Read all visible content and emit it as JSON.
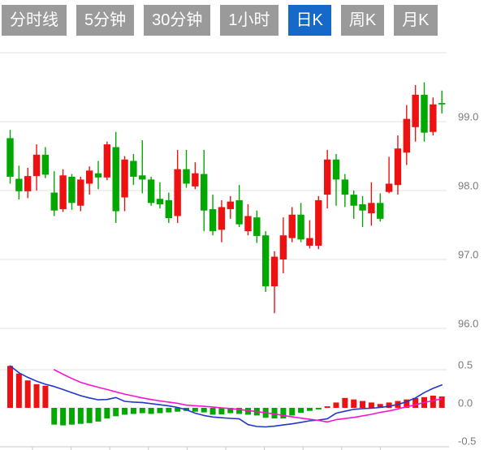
{
  "tabs": {
    "items": [
      {
        "label": "分时线",
        "active": false
      },
      {
        "label": "5分钟",
        "active": false
      },
      {
        "label": "30分钟",
        "active": false
      },
      {
        "label": "1小时",
        "active": false
      },
      {
        "label": "日K",
        "active": true
      },
      {
        "label": "周K",
        "active": false
      },
      {
        "label": "月K",
        "active": false
      }
    ]
  },
  "colors": {
    "tab_bg": "#9a9a9a",
    "tab_active_bg": "#1769c9",
    "tab_text": "#ffffff",
    "up": "#ee1111",
    "down": "#00a800",
    "dif_line": "#2136cc",
    "dea_line": "#fa14cc",
    "grid": "#e0e0e0",
    "axis": "#c9c9c9",
    "label": "#7a7a7a"
  },
  "chart_data": {
    "type": "candlestick",
    "convention": "red = up, green = down (Chinese market style)",
    "legend_position": "none",
    "grid": true,
    "price_axis": {
      "side": "right",
      "tick_labels": [
        "99.0",
        "98.0",
        "97.0",
        "96.0"
      ],
      "tick_values": [
        99.0,
        98.0,
        97.0,
        96.0
      ],
      "grid_values": [
        100.0,
        99.0,
        98.0,
        97.0,
        96.0
      ],
      "range": [
        95.8,
        100.0
      ]
    },
    "candles_ohlc": [
      [
        98.76,
        98.88,
        98.1,
        98.2
      ],
      [
        98.17,
        98.36,
        97.87,
        97.99
      ],
      [
        97.99,
        98.33,
        97.89,
        98.21
      ],
      [
        98.21,
        98.67,
        98.0,
        98.52
      ],
      [
        98.52,
        98.63,
        98.18,
        98.23
      ],
      [
        97.97,
        98.28,
        97.63,
        97.71
      ],
      [
        97.73,
        98.31,
        97.69,
        98.22
      ],
      [
        98.2,
        98.24,
        97.72,
        97.82
      ],
      [
        97.78,
        98.2,
        97.7,
        98.16
      ],
      [
        98.1,
        98.35,
        97.94,
        98.29
      ],
      [
        98.25,
        98.43,
        98.02,
        98.19
      ],
      [
        98.19,
        98.71,
        98.15,
        98.67
      ],
      [
        98.63,
        98.85,
        97.53,
        97.7
      ],
      [
        97.9,
        98.5,
        97.7,
        98.45
      ],
      [
        98.43,
        98.53,
        98.08,
        98.2
      ],
      [
        98.22,
        98.73,
        97.96,
        98.16
      ],
      [
        98.16,
        98.2,
        97.78,
        97.82
      ],
      [
        97.88,
        98.12,
        97.74,
        97.8
      ],
      [
        97.86,
        97.97,
        97.53,
        97.6
      ],
      [
        97.63,
        98.59,
        97.53,
        98.31
      ],
      [
        98.31,
        98.59,
        98.04,
        98.1
      ],
      [
        98.06,
        98.41,
        98.02,
        98.25
      ],
      [
        98.24,
        98.59,
        97.41,
        97.71
      ],
      [
        97.73,
        97.94,
        97.35,
        97.41
      ],
      [
        97.43,
        97.86,
        97.25,
        97.76
      ],
      [
        97.73,
        97.92,
        97.59,
        97.84
      ],
      [
        97.86,
        98.08,
        97.47,
        97.51
      ],
      [
        97.41,
        97.8,
        97.35,
        97.63
      ],
      [
        97.61,
        97.71,
        97.24,
        97.34
      ],
      [
        97.35,
        97.41,
        96.53,
        96.61
      ],
      [
        96.61,
        97.12,
        96.22,
        97.04
      ],
      [
        97.0,
        97.61,
        96.8,
        97.35
      ],
      [
        97.31,
        97.76,
        97.25,
        97.65
      ],
      [
        97.65,
        97.82,
        97.25,
        97.29
      ],
      [
        97.2,
        97.57,
        97.16,
        97.31
      ],
      [
        97.2,
        97.92,
        97.15,
        97.86
      ],
      [
        97.94,
        98.59,
        97.74,
        98.45
      ],
      [
        98.45,
        98.53,
        97.78,
        98.16
      ],
      [
        98.16,
        98.24,
        97.76,
        97.94
      ],
      [
        97.94,
        98.0,
        97.59,
        97.78
      ],
      [
        97.8,
        97.92,
        97.47,
        97.71
      ],
      [
        97.67,
        98.12,
        97.49,
        97.82
      ],
      [
        97.82,
        97.96,
        97.55,
        97.59
      ],
      [
        97.98,
        98.49,
        97.96,
        98.1
      ],
      [
        98.08,
        98.8,
        97.94,
        98.61
      ],
      [
        98.55,
        99.24,
        98.37,
        99.04
      ],
      [
        98.92,
        99.53,
        98.71,
        99.39
      ],
      [
        99.39,
        99.57,
        98.71,
        98.84
      ],
      [
        98.85,
        99.35,
        98.8,
        99.25
      ],
      [
        99.27,
        99.45,
        99.12,
        99.25
      ]
    ],
    "macd_panel": {
      "tick_labels": [
        "0.5",
        "0.0",
        "-0.5"
      ],
      "tick_values": [
        0.5,
        0.0,
        -0.5
      ],
      "grid_values": [
        0.5
      ],
      "range": [
        -0.55,
        0.55
      ],
      "histogram": [
        0.55,
        0.45,
        0.36,
        0.31,
        0.29,
        -0.22,
        -0.23,
        -0.22,
        -0.21,
        -0.2,
        -0.18,
        -0.14,
        -0.11,
        -0.09,
        -0.08,
        -0.07,
        -0.08,
        -0.07,
        -0.06,
        -0.05,
        -0.04,
        -0.05,
        -0.06,
        -0.09,
        -0.085,
        -0.07,
        -0.08,
        -0.09,
        -0.1,
        -0.13,
        -0.14,
        -0.14,
        -0.1,
        -0.065,
        -0.04,
        -0.02,
        0.02,
        0.07,
        0.13,
        0.11,
        0.09,
        0.07,
        0.05,
        0.07,
        0.09,
        0.11,
        0.13,
        0.14,
        0.16,
        0.15
      ],
      "dif": [
        0.55,
        0.46,
        0.4,
        0.35,
        0.31,
        0.28,
        0.24,
        0.2,
        0.16,
        0.13,
        0.105,
        0.11,
        0.135,
        0.085,
        0.075,
        0.07,
        0.055,
        0.04,
        0.025,
        0.005,
        -0.025,
        -0.07,
        -0.1,
        -0.12,
        -0.13,
        -0.138,
        -0.145,
        -0.22,
        -0.245,
        -0.25,
        -0.24,
        -0.225,
        -0.21,
        -0.19,
        -0.17,
        -0.16,
        -0.145,
        -0.07,
        -0.045,
        -0.02,
        -0.01,
        -0.005,
        0.005,
        0.02,
        0.045,
        0.08,
        0.13,
        0.2,
        0.255,
        0.3
      ],
      "dea": [
        null,
        null,
        null,
        null,
        null,
        0.5,
        0.44,
        0.385,
        0.335,
        0.3,
        0.27,
        0.24,
        0.21,
        0.18,
        0.155,
        0.13,
        0.11,
        0.09,
        0.075,
        0.06,
        0.035,
        0.028,
        0.02,
        0.01,
        0.0,
        -0.01,
        -0.02,
        -0.035,
        -0.05,
        -0.065,
        -0.08,
        -0.1,
        -0.118,
        -0.135,
        -0.15,
        -0.165,
        -0.185,
        -0.155,
        -0.14,
        -0.125,
        -0.105,
        -0.085,
        -0.06,
        -0.04,
        -0.015,
        0.015,
        0.04,
        0.07,
        0.095,
        0.12
      ]
    },
    "x_axis": {
      "labels_visible": false,
      "tick_count": 10
    }
  }
}
